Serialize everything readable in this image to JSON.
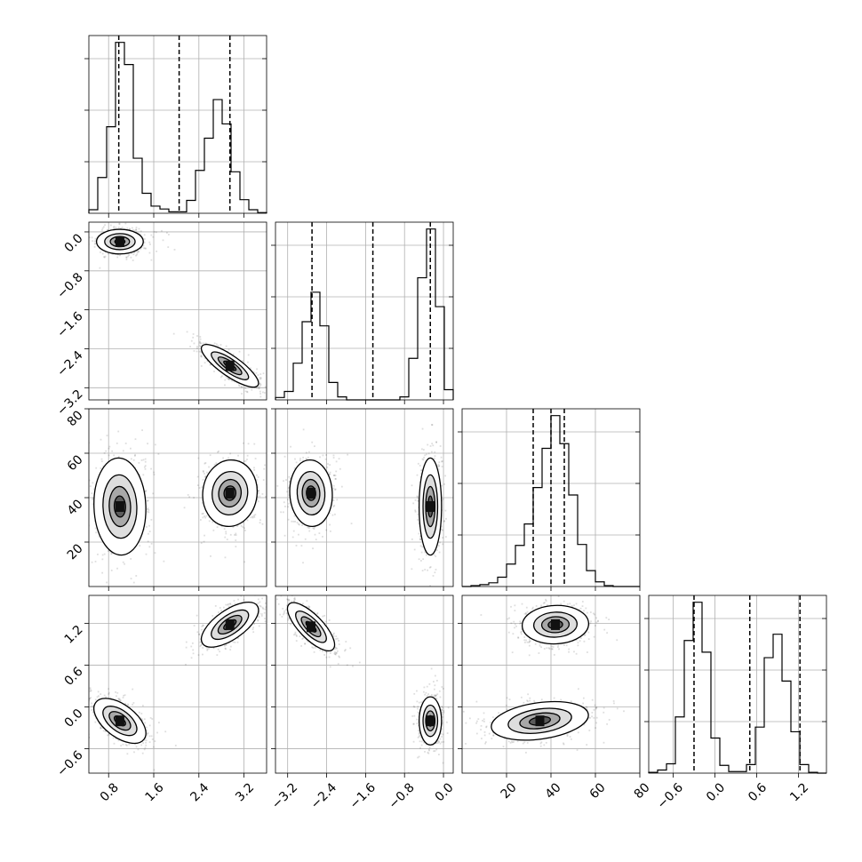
{
  "chart_data": {
    "type": "corner",
    "parameters": 4,
    "grid": true,
    "axes_ticks": [
      {
        "ticks": [
          0.8,
          1.6,
          2.4,
          3.2
        ],
        "labels": [
          "0.8",
          "1.6",
          "2.4",
          "3.2"
        ],
        "range": [
          0.45,
          3.6
        ]
      },
      {
        "ticks": [
          -3.2,
          -2.4,
          -1.6,
          -0.8,
          0.0
        ],
        "labels": [
          "−3.2",
          "−2.4",
          "−1.6",
          "−0.8",
          "0.0"
        ],
        "range": [
          -3.45,
          0.2
        ]
      },
      {
        "ticks": [
          20,
          40,
          60,
          80
        ],
        "labels": [
          "20",
          "40",
          "60",
          "80"
        ],
        "range": [
          0,
          80
        ]
      },
      {
        "ticks": [
          -0.6,
          0.0,
          0.6,
          1.2
        ],
        "labels": [
          "−0.6",
          "0.0",
          "0.6",
          "1.2"
        ],
        "range": [
          -0.95,
          1.6
        ]
      }
    ],
    "histograms": [
      {
        "bin_edges": [
          0.45,
          0.6075,
          0.765,
          0.9225,
          1.08,
          1.2375,
          1.395,
          1.5525,
          1.71,
          1.8675,
          2.025,
          2.1825,
          2.34,
          2.4975,
          2.655,
          2.8125,
          2.97,
          3.1275,
          3.285,
          3.4425,
          3.6
        ],
        "counts": [
          5,
          50,
          121,
          239,
          208,
          77,
          28,
          10,
          6,
          2,
          2,
          18,
          60,
          105,
          159,
          125,
          58,
          19,
          5,
          1
        ],
        "quantiles": [
          0.98,
          2.05,
          2.95
        ]
      },
      {
        "bin_edges": [
          -3.45,
          -3.2675,
          -3.085,
          -2.9025,
          -2.72,
          -2.5375,
          -2.355,
          -2.1725,
          -1.99,
          -1.8075,
          -1.625,
          -1.4425,
          -1.26,
          -1.0775,
          -0.895,
          -0.7125,
          -0.53,
          -0.3475,
          -0.165,
          0.0175,
          0.2
        ],
        "counts": [
          4,
          14,
          61,
          130,
          179,
          123,
          29,
          5,
          0,
          0,
          0,
          0,
          0,
          0,
          5,
          69,
          203,
          284,
          155,
          17
        ],
        "quantiles": [
          -2.7,
          -1.45,
          -0.27
        ]
      },
      {
        "bin_edges": [
          0,
          4,
          8,
          12,
          16,
          20,
          24,
          28,
          32,
          36,
          40,
          44,
          48,
          52,
          56,
          60,
          64,
          68,
          72,
          76,
          80
        ],
        "counts": [
          0,
          1,
          2,
          4,
          10,
          24,
          44,
          67,
          106,
          148,
          183,
          153,
          98,
          45,
          17,
          5,
          1,
          0,
          0,
          0
        ],
        "quantiles": [
          32,
          40,
          46
        ]
      },
      {
        "bin_edges": [
          -0.95,
          -0.8225,
          -0.695,
          -0.5675,
          -0.44,
          -0.3125,
          -0.185,
          -0.0575,
          0.07,
          0.1975,
          0.325,
          0.4525,
          0.58,
          0.7075,
          0.835,
          0.9625,
          1.09,
          1.2175,
          1.345,
          1.4725,
          1.6
        ],
        "counts": [
          1,
          4,
          12,
          72,
          170,
          219,
          155,
          45,
          10,
          2,
          2,
          11,
          59,
          148,
          178,
          118,
          53,
          11,
          1,
          0
        ],
        "quantiles": [
          -0.3,
          0.5,
          1.22
        ]
      }
    ],
    "pairs": [
      {
        "x_param": 0,
        "y_param": 1,
        "modes": [
          {
            "cx": 1.0,
            "cy": -0.2,
            "sx": 0.18,
            "sy": 0.11,
            "rho": 0.0,
            "n": 1100
          },
          {
            "cx": 2.95,
            "cy": -2.75,
            "sx": 0.22,
            "sy": 0.19,
            "rho": -0.82,
            "n": 1100
          }
        ]
      },
      {
        "x_param": 0,
        "y_param": 2,
        "modes": [
          {
            "cx": 1.0,
            "cy": 36,
            "sx": 0.2,
            "sy": 9.5,
            "rho": -0.05,
            "n": 1100
          },
          {
            "cx": 2.95,
            "cy": 42,
            "sx": 0.21,
            "sy": 6.5,
            "rho": 0.05,
            "n": 1100
          }
        ]
      },
      {
        "x_param": 0,
        "y_param": 3,
        "modes": [
          {
            "cx": 1.0,
            "cy": -0.2,
            "sx": 0.2,
            "sy": 0.14,
            "rho": -0.55,
            "n": 1100
          },
          {
            "cx": 2.95,
            "cy": 1.18,
            "sx": 0.22,
            "sy": 0.14,
            "rho": 0.65,
            "n": 1100
          }
        ]
      },
      {
        "x_param": 1,
        "y_param": 2,
        "modes": [
          {
            "cx": -2.72,
            "cy": 42,
            "sx": 0.19,
            "sy": 6.5,
            "rho": -0.05,
            "n": 1100
          },
          {
            "cx": -0.27,
            "cy": 36,
            "sx": 0.1,
            "sy": 9.5,
            "rho": 0.0,
            "n": 1100
          }
        ]
      },
      {
        "x_param": 1,
        "y_param": 3,
        "modes": [
          {
            "cx": -2.72,
            "cy": 1.15,
            "sx": 0.21,
            "sy": 0.15,
            "rho": -0.75,
            "n": 1100
          },
          {
            "cx": -0.27,
            "cy": -0.2,
            "sx": 0.1,
            "sy": 0.15,
            "rho": 0.0,
            "n": 1100
          }
        ]
      },
      {
        "x_param": 2,
        "y_param": 3,
        "modes": [
          {
            "cx": 42,
            "cy": 1.18,
            "sx": 6.5,
            "sy": 0.12,
            "rho": 0.05,
            "n": 1100
          },
          {
            "cx": 35,
            "cy": -0.2,
            "sx": 9.5,
            "sy": 0.12,
            "rho": 0.3,
            "n": 1100
          }
        ]
      }
    ]
  }
}
